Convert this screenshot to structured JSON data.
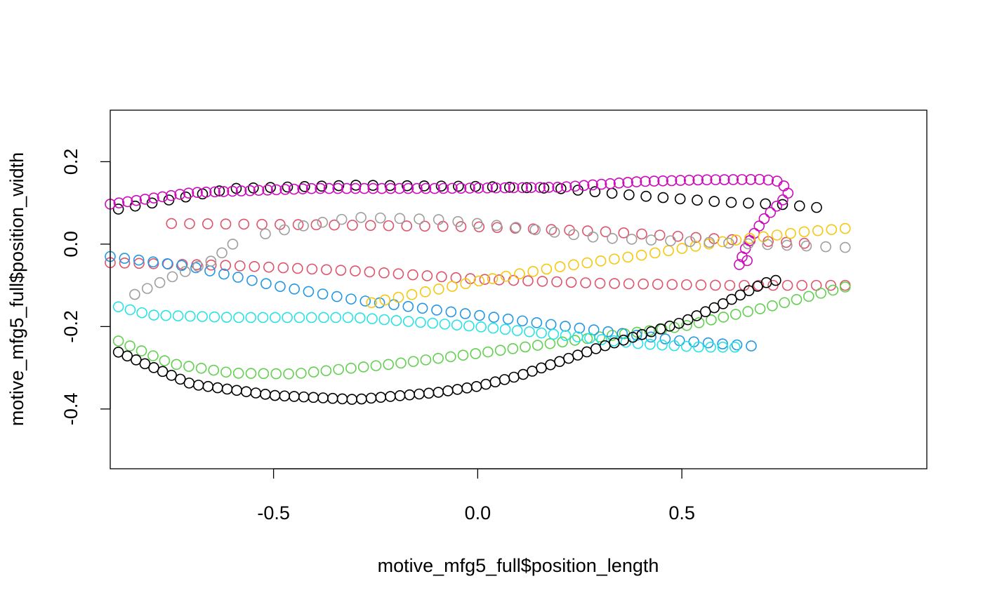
{
  "chart_data": {
    "type": "scatter",
    "title": "",
    "xlabel": "motive_mfg5_full$position_length",
    "ylabel": "motive_mfg5_full$position_width",
    "xlim": [
      -0.9,
      1.1
    ],
    "ylim": [
      -0.545,
      0.325
    ],
    "xticks": [
      -0.5,
      0.0,
      0.5
    ],
    "xtick_labels": [
      "-0.5",
      "0.0",
      "0.5"
    ],
    "yticks": [
      -0.4,
      -0.2,
      0.0,
      0.2
    ],
    "ytick_labels": [
      "-0.4",
      "-0.2",
      "0.0",
      "0.2"
    ],
    "grid": false,
    "legend": "none",
    "marker": "open-circle",
    "series": [
      {
        "color": "#000000",
        "path": [
          [
            -0.88,
            0.085
          ],
          [
            -0.6,
            0.135
          ],
          [
            -0.3,
            0.143
          ],
          [
            0.0,
            0.14
          ],
          [
            0.2,
            0.135
          ],
          [
            0.4,
            0.117
          ],
          [
            0.6,
            0.102
          ],
          [
            0.75,
            0.096
          ],
          [
            0.83,
            0.089
          ]
        ],
        "n": 42
      },
      {
        "color": "#DF536B",
        "path": [
          [
            -0.75,
            0.05
          ],
          [
            -0.4,
            0.047
          ],
          [
            0.0,
            0.042
          ],
          [
            0.3,
            0.031
          ],
          [
            0.6,
            0.012
          ],
          [
            0.8,
            0.002
          ]
        ],
        "n": 36
      },
      {
        "color": "#DF536B",
        "path": [
          [
            -0.9,
            -0.045
          ],
          [
            -0.6,
            -0.052
          ],
          [
            -0.3,
            -0.065
          ],
          [
            0.0,
            -0.085
          ],
          [
            0.3,
            -0.095
          ],
          [
            0.6,
            -0.1
          ],
          [
            0.9,
            -0.1
          ]
        ],
        "n": 52
      },
      {
        "color": "#61D04F",
        "path": [
          [
            -0.88,
            -0.235
          ],
          [
            -0.75,
            -0.29
          ],
          [
            -0.6,
            -0.313
          ],
          [
            -0.45,
            -0.315
          ],
          [
            -0.2,
            -0.29
          ],
          [
            0.0,
            -0.265
          ],
          [
            0.3,
            -0.225
          ],
          [
            0.5,
            -0.2
          ],
          [
            0.7,
            -0.155
          ],
          [
            0.9,
            -0.104
          ]
        ],
        "n": 60
      },
      {
        "color": "#2297E6",
        "path": [
          [
            -0.9,
            -0.03
          ],
          [
            -0.7,
            -0.055
          ],
          [
            -0.5,
            -0.1
          ],
          [
            -0.3,
            -0.135
          ],
          [
            -0.1,
            -0.16
          ],
          [
            0.1,
            -0.185
          ],
          [
            0.3,
            -0.21
          ],
          [
            0.5,
            -0.235
          ],
          [
            0.67,
            -0.247
          ]
        ],
        "n": 46
      },
      {
        "color": "#28E2E5",
        "path": [
          [
            -0.88,
            -0.152
          ],
          [
            -0.8,
            -0.172
          ],
          [
            -0.6,
            -0.178
          ],
          [
            -0.3,
            -0.178
          ],
          [
            0.0,
            -0.2
          ],
          [
            0.2,
            -0.22
          ],
          [
            0.4,
            -0.242
          ],
          [
            0.55,
            -0.25
          ],
          [
            0.63,
            -0.25
          ]
        ],
        "n": 52
      },
      {
        "color": "#CD0BBC",
        "path": [
          [
            -0.9,
            0.097
          ],
          [
            -0.7,
            0.125
          ],
          [
            -0.4,
            0.135
          ],
          [
            -0.1,
            0.135
          ],
          [
            0.2,
            0.138
          ],
          [
            0.4,
            0.152
          ],
          [
            0.55,
            0.156
          ],
          [
            0.7,
            0.157
          ],
          [
            0.74,
            0.152
          ],
          [
            0.76,
            0.13
          ],
          [
            0.76,
            0.12
          ],
          [
            0.7,
            0.06
          ],
          [
            0.66,
            0.0
          ],
          [
            0.64,
            -0.05
          ],
          [
            0.66,
            -0.04
          ]
        ],
        "n": 90
      },
      {
        "color": "#F5C710",
        "path": [
          [
            -0.26,
            -0.142
          ],
          [
            -0.1,
            -0.11
          ],
          [
            0.0,
            -0.09
          ],
          [
            0.2,
            -0.055
          ],
          [
            0.4,
            -0.027
          ],
          [
            0.6,
            0.006
          ],
          [
            0.8,
            0.03
          ],
          [
            0.9,
            0.038
          ]
        ],
        "n": 36
      },
      {
        "color": "#9E9E9E",
        "path": [
          [
            -0.84,
            -0.122
          ],
          [
            -0.75,
            -0.08
          ],
          [
            -0.65,
            -0.04
          ],
          [
            -0.6,
            0.0
          ]
        ],
        "n": 9
      },
      {
        "color": "#9E9E9E",
        "path": [
          [
            -0.52,
            0.025
          ],
          [
            -0.4,
            0.05
          ],
          [
            -0.3,
            0.065
          ],
          [
            -0.1,
            0.06
          ],
          [
            0.1,
            0.04
          ],
          [
            0.3,
            0.015
          ],
          [
            0.6,
            0.003
          ],
          [
            0.9,
            -0.008
          ]
        ],
        "n": 31
      },
      {
        "color": "#000000",
        "path": [
          [
            -0.88,
            -0.262
          ],
          [
            -0.7,
            -0.34
          ],
          [
            -0.5,
            -0.367
          ],
          [
            -0.3,
            -0.377
          ],
          [
            -0.1,
            -0.36
          ],
          [
            0.0,
            -0.345
          ],
          [
            0.1,
            -0.32
          ],
          [
            0.3,
            -0.25
          ],
          [
            0.5,
            -0.19
          ],
          [
            0.6,
            -0.145
          ],
          [
            0.7,
            -0.095
          ],
          [
            0.73,
            -0.088
          ]
        ],
        "n": 72
      }
    ]
  }
}
